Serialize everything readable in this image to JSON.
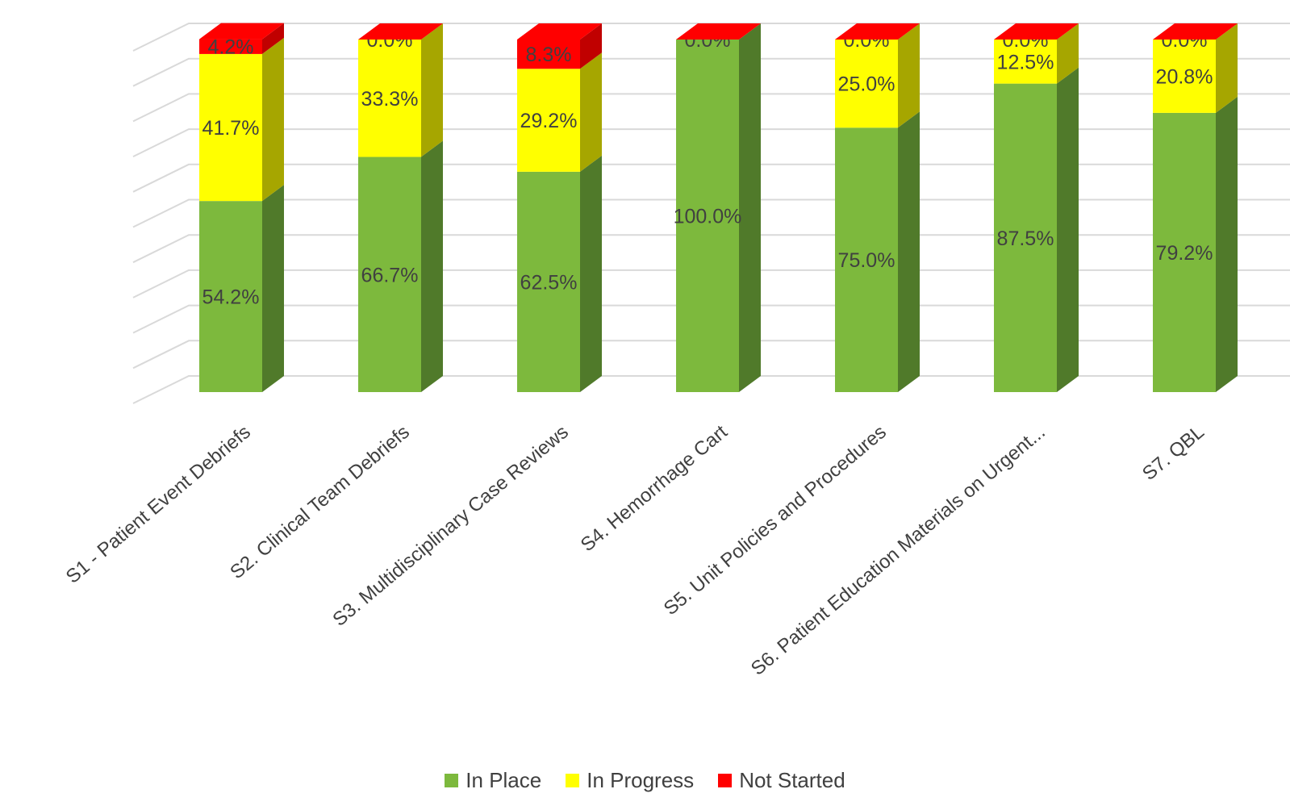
{
  "chart_data": {
    "type": "bar",
    "stacked": true,
    "three_d": true,
    "categories": [
      "S1 - Patient Event Debriefs",
      "S2. Clinical Team Debriefs",
      "S3. Multidisciplinary Case Reviews",
      "S4. Hemorrhage Cart",
      "S5. Unit Policies and Procedures",
      "S6. Patient Education Materials on Urgent...",
      "S7. QBL"
    ],
    "series": [
      {
        "name": "In Place",
        "color": "#7db93d",
        "side_color": "#507a2a",
        "values": [
          54.2,
          66.7,
          62.5,
          100.0,
          75.0,
          87.5,
          79.2
        ],
        "labels": [
          "54.2%",
          "66.7%",
          "62.5%",
          "100.0%",
          "75.0%",
          "87.5%",
          "79.2%"
        ]
      },
      {
        "name": "In Progress",
        "color": "#ffff00",
        "side_color": "#a6a600",
        "values": [
          41.7,
          33.3,
          29.2,
          0.0,
          25.0,
          12.5,
          20.8
        ],
        "labels": [
          "41.7%",
          "33.3%",
          "29.2%",
          "",
          "25.0%",
          "12.5%",
          "20.8%"
        ]
      },
      {
        "name": "Not Started",
        "color": "#ff0000",
        "side_color": "#c00000",
        "values": [
          4.2,
          0.0,
          8.3,
          0.0,
          0.0,
          0.0,
          0.0
        ],
        "labels": [
          "4.2%",
          "0.0%",
          "8.3%",
          "0.0%",
          "0.0%",
          "0.0%",
          "0.0%"
        ]
      }
    ],
    "ylim": [
      0,
      100
    ],
    "gridlines": 11,
    "grid": true,
    "legend_position": "bottom"
  }
}
